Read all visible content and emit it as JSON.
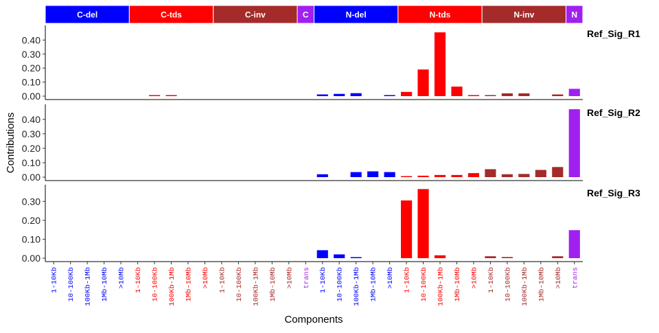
{
  "chart_data": {
    "type": "bar",
    "xlabel": "Components",
    "ylabel": "Contributions",
    "colors": {
      "blue": "#0000ff",
      "red": "#ff0000",
      "brown": "#a52a2a",
      "purple": "#a020f0"
    },
    "groups": [
      {
        "label": "C-del",
        "color": "#0000ff",
        "count": 5
      },
      {
        "label": "C-tds",
        "color": "#ff0000",
        "count": 5
      },
      {
        "label": "C-inv",
        "color": "#a52a2a",
        "count": 5
      },
      {
        "label": "C",
        "color": "#a020f0",
        "count": 1
      },
      {
        "label": "N-del",
        "color": "#0000ff",
        "count": 5
      },
      {
        "label": "N-tds",
        "color": "#ff0000",
        "count": 5
      },
      {
        "label": "N-inv",
        "color": "#a52a2a",
        "count": 5
      },
      {
        "label": "N",
        "color": "#a020f0",
        "count": 1
      }
    ],
    "categories": [
      "1-10Kb",
      "10-100Kb",
      "100Kb-1Mb",
      "1Mb-10Mb",
      ">10Mb",
      "1-10Kb",
      "10-100Kb",
      "100Kb-1Mb",
      "1Mb-10Mb",
      ">10Mb",
      "1-10Kb",
      "10-100Kb",
      "100Kb-1Mb",
      "1Mb-10Mb",
      ">10Mb",
      "trans",
      "1-10Kb",
      "10-100Kb",
      "100Kb-1Mb",
      "1Mb-10Mb",
      ">10Mb",
      "1-10Kb",
      "10-100Kb",
      "100Kb-1Mb",
      "1Mb-10Mb",
      ">10Mb",
      "1-10Kb",
      "10-100Kb",
      "100Kb-1Mb",
      "1Mb-10Mb",
      ">10Mb",
      "trans"
    ],
    "panels": [
      {
        "name": "Ref_Sig_R1",
        "ylim": [
          0,
          0.48
        ],
        "ticks": [
          0.0,
          0.1,
          0.2,
          0.3,
          0.4
        ],
        "tick_labels": [
          "0.00",
          "0.10",
          "0.20",
          "0.30",
          "0.40"
        ],
        "values": [
          0,
          0,
          0,
          0,
          0,
          0,
          0.004,
          0.007,
          0,
          0,
          0,
          0,
          0,
          0,
          0,
          0,
          0.012,
          0.016,
          0.021,
          0,
          0.004,
          0.03,
          0.19,
          0.455,
          0.068,
          0.004,
          0.003,
          0.02,
          0.02,
          0,
          0.012,
          0.052
        ]
      },
      {
        "name": "Ref_Sig_R2",
        "ylim": [
          0,
          0.48
        ],
        "ticks": [
          0.0,
          0.1,
          0.2,
          0.3,
          0.4
        ],
        "tick_labels": [
          "0.00",
          "0.10",
          "0.20",
          "0.30",
          "0.40"
        ],
        "values": [
          0,
          0,
          0,
          0,
          0,
          0,
          0,
          0,
          0,
          0,
          0,
          0,
          0,
          0,
          0,
          0,
          0.02,
          0,
          0.035,
          0.04,
          0.035,
          0.006,
          0.01,
          0.015,
          0.015,
          0.028,
          0.055,
          0.02,
          0.022,
          0.05,
          0.07,
          0.47
        ]
      },
      {
        "name": "Ref_Sig_R3",
        "ylim": [
          0,
          0.37
        ],
        "ticks": [
          0.0,
          0.1,
          0.2,
          0.3
        ],
        "tick_labels": [
          "0.00",
          "0.10",
          "0.20",
          "0.30"
        ],
        "values": [
          0,
          0,
          0,
          0,
          0,
          0,
          0,
          0,
          0,
          0,
          0,
          0,
          0,
          0,
          0,
          0,
          0.042,
          0.02,
          0.004,
          0,
          0,
          0.305,
          0.365,
          0.015,
          0,
          0,
          0.01,
          0.006,
          0,
          0,
          0.01,
          0.148
        ]
      }
    ]
  }
}
